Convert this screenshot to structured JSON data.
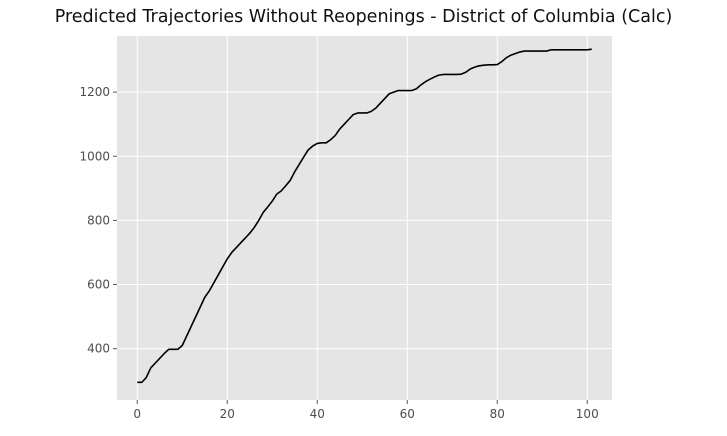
{
  "chart_data": {
    "type": "line",
    "title": "Predicted Trajectories Without Reopenings - District of Columbia (Calc)",
    "xlabel": "",
    "ylabel": "",
    "xlim": [
      -4.5,
      105.5
    ],
    "ylim": [
      240,
      1375
    ],
    "xticks": [
      0,
      20,
      40,
      60,
      80,
      100
    ],
    "yticks": [
      400,
      600,
      800,
      1000,
      1200
    ],
    "grid": true,
    "colors": {
      "background": "#e5e5e5",
      "grid": "#ffffff",
      "line": "#000000",
      "tick_text": "#4d4d4d"
    },
    "series": [
      {
        "x": [
          0,
          1,
          2,
          3,
          4,
          5,
          6,
          7,
          8,
          9,
          10,
          11,
          12,
          13,
          14,
          15,
          16,
          17,
          18,
          19,
          20,
          21,
          22,
          23,
          24,
          25,
          26,
          27,
          28,
          29,
          30,
          31,
          32,
          33,
          34,
          35,
          36,
          37,
          38,
          39,
          40,
          41,
          42,
          43,
          44,
          45,
          46,
          47,
          48,
          49,
          50,
          51,
          52,
          53,
          54,
          55,
          56,
          57,
          58,
          59,
          60,
          61,
          62,
          63,
          64,
          65,
          66,
          67,
          68,
          69,
          70,
          71,
          72,
          73,
          74,
          75,
          76,
          77,
          78,
          79,
          80,
          81,
          82,
          83,
          84,
          85,
          86,
          87,
          88,
          89,
          90,
          91,
          92,
          93,
          94,
          95,
          96,
          97,
          98,
          99,
          100,
          101
        ],
        "values": [
          295,
          295,
          310,
          340,
          355,
          370,
          385,
          398,
          398,
          398,
          410,
          440,
          470,
          500,
          530,
          560,
          580,
          605,
          630,
          655,
          680,
          700,
          715,
          730,
          745,
          760,
          778,
          800,
          825,
          842,
          860,
          882,
          892,
          908,
          925,
          952,
          975,
          998,
          1020,
          1032,
          1040,
          1042,
          1042,
          1052,
          1065,
          1085,
          1100,
          1115,
          1130,
          1135,
          1135,
          1135,
          1140,
          1150,
          1165,
          1180,
          1195,
          1200,
          1205,
          1205,
          1205,
          1205,
          1210,
          1222,
          1232,
          1240,
          1247,
          1253,
          1255,
          1255,
          1255,
          1255,
          1256,
          1262,
          1272,
          1278,
          1282,
          1284,
          1285,
          1285,
          1286,
          1295,
          1307,
          1315,
          1320,
          1325,
          1328,
          1328,
          1328,
          1328,
          1328,
          1328,
          1332,
          1332,
          1332,
          1332,
          1332,
          1332,
          1332,
          1332,
          1332,
          1334
        ]
      }
    ]
  }
}
